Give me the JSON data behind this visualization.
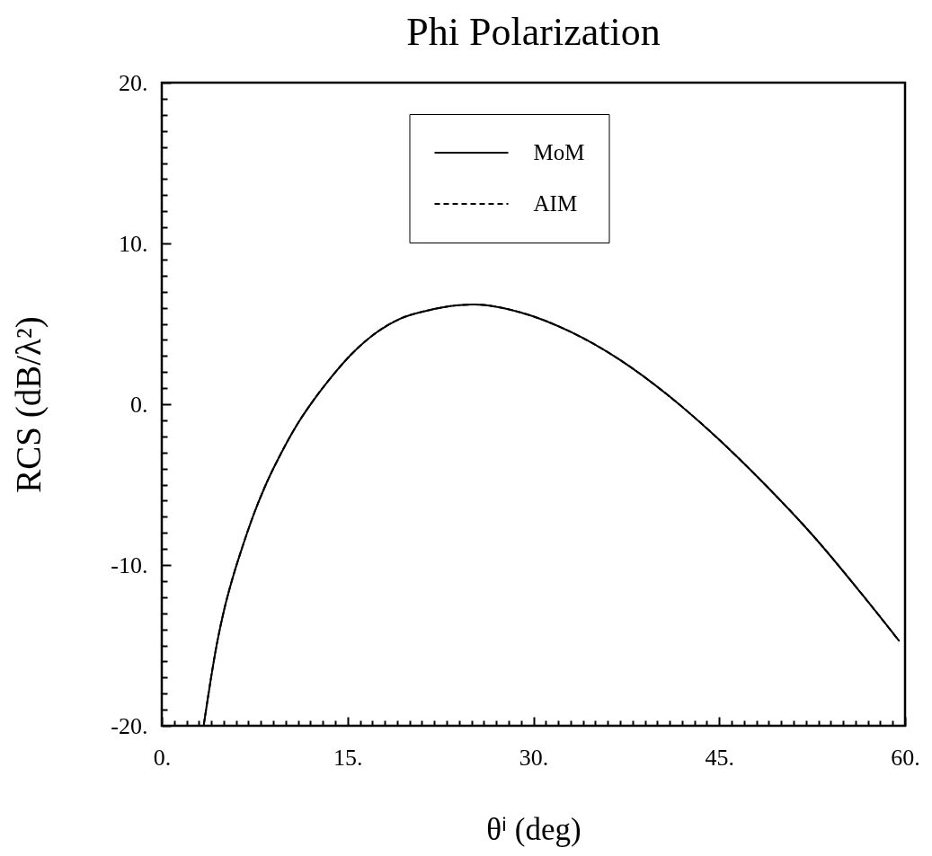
{
  "chart_data": {
    "type": "line",
    "title": "Phi Polarization",
    "xlabel": "θⁱ (deg)",
    "ylabel": "RCS (dB/λ²)",
    "x": [
      3.4,
      4.5,
      5.0,
      5.8,
      6.5,
      7.4,
      8.4,
      9.6,
      10.9,
      12.3,
      13.7,
      15.3,
      17.4,
      19.2,
      21.3,
      25.2,
      29.0,
      33.0,
      36.9,
      40.8,
      44.7,
      48.7,
      52.6,
      56.5,
      59.5
    ],
    "series": [
      {
        "name": "MoM",
        "color": "#000000",
        "line_style": "solid",
        "values": [
          -19.9,
          -14.7,
          -12.9,
          -10.6,
          -8.9,
          -6.9,
          -5.0,
          -3.1,
          -1.3,
          0.3,
          1.7,
          3.1,
          4.5,
          5.3,
          5.8,
          6.2,
          5.7,
          4.5,
          2.8,
          0.6,
          -2.0,
          -5.0,
          -8.2,
          -11.8,
          -14.7
        ]
      },
      {
        "name": "AIM",
        "color": "#000000",
        "line_style": "dashed",
        "values": [
          -19.9,
          -14.7,
          -12.9,
          -10.6,
          -8.9,
          -6.9,
          -5.0,
          -3.1,
          -1.3,
          0.3,
          1.7,
          3.1,
          4.5,
          5.3,
          5.8,
          6.2,
          5.7,
          4.5,
          2.8,
          0.6,
          -2.0,
          -5.0,
          -8.2,
          -11.8,
          -14.7
        ]
      }
    ],
    "xlim": [
      0,
      60
    ],
    "ylim": [
      -20,
      20
    ],
    "xticks": [
      {
        "value": 0,
        "label": "0."
      },
      {
        "value": 1,
        "label": null
      },
      {
        "value": 2,
        "label": null
      },
      {
        "value": 3,
        "label": null
      },
      {
        "value": 4,
        "label": null
      },
      {
        "value": 5,
        "label": null
      },
      {
        "value": 6,
        "label": null
      },
      {
        "value": 7,
        "label": null
      },
      {
        "value": 8,
        "label": null
      },
      {
        "value": 9,
        "label": null
      },
      {
        "value": 10,
        "label": null
      },
      {
        "value": 11,
        "label": null
      },
      {
        "value": 12,
        "label": null
      },
      {
        "value": 13,
        "label": null
      },
      {
        "value": 14,
        "label": null
      },
      {
        "value": 15,
        "label": "15."
      },
      {
        "value": 16,
        "label": null
      },
      {
        "value": 17,
        "label": null
      },
      {
        "value": 18,
        "label": null
      },
      {
        "value": 19,
        "label": null
      },
      {
        "value": 20,
        "label": null
      },
      {
        "value": 21,
        "label": null
      },
      {
        "value": 22,
        "label": null
      },
      {
        "value": 23,
        "label": null
      },
      {
        "value": 24,
        "label": null
      },
      {
        "value": 25,
        "label": null
      },
      {
        "value": 26,
        "label": null
      },
      {
        "value": 27,
        "label": null
      },
      {
        "value": 28,
        "label": null
      },
      {
        "value": 29,
        "label": null
      },
      {
        "value": 30,
        "label": "30."
      },
      {
        "value": 31,
        "label": null
      },
      {
        "value": 32,
        "label": null
      },
      {
        "value": 33,
        "label": null
      },
      {
        "value": 34,
        "label": null
      },
      {
        "value": 35,
        "label": null
      },
      {
        "value": 36,
        "label": null
      },
      {
        "value": 37,
        "label": null
      },
      {
        "value": 38,
        "label": null
      },
      {
        "value": 39,
        "label": null
      },
      {
        "value": 40,
        "label": null
      },
      {
        "value": 41,
        "label": null
      },
      {
        "value": 42,
        "label": null
      },
      {
        "value": 43,
        "label": null
      },
      {
        "value": 44,
        "label": null
      },
      {
        "value": 45,
        "label": "45."
      },
      {
        "value": 46,
        "label": null
      },
      {
        "value": 47,
        "label": null
      },
      {
        "value": 48,
        "label": null
      },
      {
        "value": 49,
        "label": null
      },
      {
        "value": 50,
        "label": null
      },
      {
        "value": 51,
        "label": null
      },
      {
        "value": 52,
        "label": null
      },
      {
        "value": 53,
        "label": null
      },
      {
        "value": 54,
        "label": null
      },
      {
        "value": 55,
        "label": null
      },
      {
        "value": 56,
        "label": null
      },
      {
        "value": 57,
        "label": null
      },
      {
        "value": 58,
        "label": null
      },
      {
        "value": 59,
        "label": null
      },
      {
        "value": 60,
        "label": "60."
      }
    ],
    "yticks": [
      {
        "value": -20,
        "label": "-20."
      },
      {
        "value": -19,
        "label": null
      },
      {
        "value": -18,
        "label": null
      },
      {
        "value": -17,
        "label": null
      },
      {
        "value": -16,
        "label": null
      },
      {
        "value": -15,
        "label": null
      },
      {
        "value": -14,
        "label": null
      },
      {
        "value": -13,
        "label": null
      },
      {
        "value": -12,
        "label": null
      },
      {
        "value": -11,
        "label": null
      },
      {
        "value": -10,
        "label": "-10."
      },
      {
        "value": -9,
        "label": null
      },
      {
        "value": -8,
        "label": null
      },
      {
        "value": -7,
        "label": null
      },
      {
        "value": -6,
        "label": null
      },
      {
        "value": -5,
        "label": null
      },
      {
        "value": -4,
        "label": null
      },
      {
        "value": -3,
        "label": null
      },
      {
        "value": -2,
        "label": null
      },
      {
        "value": -1,
        "label": null
      },
      {
        "value": 0,
        "label": "0."
      },
      {
        "value": 1,
        "label": null
      },
      {
        "value": 2,
        "label": null
      },
      {
        "value": 3,
        "label": null
      },
      {
        "value": 4,
        "label": null
      },
      {
        "value": 5,
        "label": null
      },
      {
        "value": 6,
        "label": null
      },
      {
        "value": 7,
        "label": null
      },
      {
        "value": 8,
        "label": null
      },
      {
        "value": 9,
        "label": null
      },
      {
        "value": 10,
        "label": "10."
      },
      {
        "value": 11,
        "label": null
      },
      {
        "value": 12,
        "label": null
      },
      {
        "value": 13,
        "label": null
      },
      {
        "value": 14,
        "label": null
      },
      {
        "value": 15,
        "label": null
      },
      {
        "value": 16,
        "label": null
      },
      {
        "value": 17,
        "label": null
      },
      {
        "value": 18,
        "label": null
      },
      {
        "value": 19,
        "label": null
      },
      {
        "value": 20,
        "label": "20."
      }
    ],
    "legend": "top"
  }
}
